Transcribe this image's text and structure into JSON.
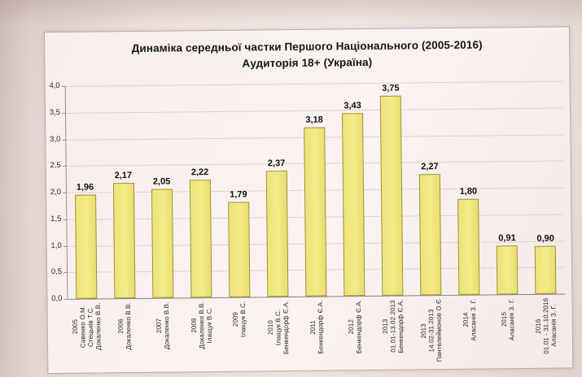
{
  "colors": {
    "paper": "#eadcd8",
    "panel_bg": "#f9f2f0",
    "bar_fill": "#f0e87d",
    "bar_border": "#9f902c",
    "gridline": "#ddd2cf",
    "text": "#161616"
  },
  "chart_data": {
    "type": "bar",
    "title": "Динаміка середньої частки Першого Національного (2005-2016)",
    "subtitle": "Аудиторія 18+ (Україна)",
    "xlabel": "",
    "ylabel": "",
    "ylim": [
      0,
      4
    ],
    "grid": true,
    "legend": false,
    "value_format": "decimal-comma",
    "yticks": [
      {
        "v": 4.0,
        "label": "4,0"
      },
      {
        "v": 3.5,
        "label": "3,5"
      },
      {
        "v": 3.0,
        "label": "3,0"
      },
      {
        "v": 2.5,
        "label": "2,5"
      },
      {
        "v": 2.0,
        "label": "2,0"
      },
      {
        "v": 1.5,
        "label": "1,5"
      },
      {
        "v": 1.0,
        "label": "1,0"
      },
      {
        "v": 0.5,
        "label": "0,5"
      },
      {
        "v": 0.0,
        "label": "0,0"
      }
    ],
    "bars": [
      {
        "value": 1.96,
        "label": "1,96",
        "x_lines": [
          "2005",
          "Савенко О.М.",
          "Стецьків Т.С.",
          "Докаленко В.В."
        ]
      },
      {
        "value": 2.17,
        "label": "2,17",
        "x_lines": [
          "2006",
          "Докаленко В.В."
        ]
      },
      {
        "value": 2.05,
        "label": "2,05",
        "x_lines": [
          "2007",
          "Докаленко В.В."
        ]
      },
      {
        "value": 2.22,
        "label": "2,22",
        "x_lines": [
          "2008",
          "Докаленко В.В.",
          "Ілащук В.С."
        ]
      },
      {
        "value": 1.79,
        "label": "1,79",
        "x_lines": [
          "2009",
          "Ілащук В.С."
        ]
      },
      {
        "value": 2.37,
        "label": "2,37",
        "x_lines": [
          "2010",
          "Ілащук В.С.",
          "Бенкендорф Є.А."
        ]
      },
      {
        "value": 3.18,
        "label": "3,18",
        "x_lines": [
          "2011",
          "Бенкендорф Є.А."
        ]
      },
      {
        "value": 3.43,
        "label": "3,43",
        "x_lines": [
          "2012",
          "Бенкендорф Є.А."
        ]
      },
      {
        "value": 3.75,
        "label": "3,75",
        "x_lines": [
          "2013",
          "01.01-13.02.2013",
          "Бенкендорф Є.А."
        ]
      },
      {
        "value": 2.27,
        "label": "2,27",
        "x_lines": [
          "2013",
          "14.02-31.2013",
          "Пантелеймонов О.Є"
        ]
      },
      {
        "value": 1.8,
        "label": "1,80",
        "x_lines": [
          "2014",
          "Аласанія З. Г."
        ]
      },
      {
        "value": 0.91,
        "label": "0,91",
        "x_lines": [
          "2015",
          "Аласанія З. Г."
        ]
      },
      {
        "value": 0.9,
        "label": "0,90",
        "x_lines": [
          "2016",
          "01.01 - 31.10.2016",
          "Аласанія З. Г."
        ]
      }
    ]
  }
}
